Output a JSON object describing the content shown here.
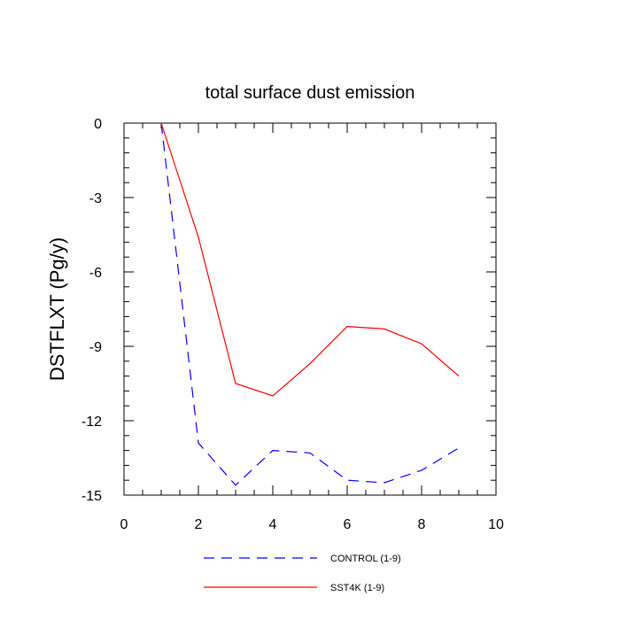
{
  "chart_data": {
    "type": "line",
    "title": "total surface dust emission",
    "xlabel": "",
    "ylabel": "DSTFLXT  (Pg/y)",
    "xlim": [
      0,
      10
    ],
    "ylim": [
      -15,
      0
    ],
    "x_ticks": [
      0,
      2,
      4,
      6,
      8,
      10
    ],
    "y_ticks": [
      0,
      -3,
      -6,
      -9,
      -12,
      -15
    ],
    "x_tick_labels": [
      "0",
      "2",
      "4",
      "6",
      "8",
      "10"
    ],
    "y_tick_labels": [
      "0",
      "-3",
      "-6",
      "-9",
      "-12",
      "-15"
    ],
    "grid": false,
    "legend_position": "bottom",
    "series": [
      {
        "name": "CONTROL (1-9)",
        "color": "#0000ff",
        "line_style": "dashed",
        "x": [
          1,
          2,
          3,
          4,
          5,
          6,
          7,
          8,
          9
        ],
        "values": [
          0,
          -12.9,
          -14.6,
          -13.2,
          -13.3,
          -14.4,
          -14.5,
          -14.0,
          -13.1
        ]
      },
      {
        "name": "SST4K (1-9)",
        "color": "#ff0000",
        "line_style": "solid",
        "x": [
          1,
          2,
          3,
          4,
          5,
          6,
          7,
          8,
          9
        ],
        "values": [
          0,
          -4.6,
          -10.5,
          -11.0,
          -9.7,
          -8.2,
          -8.3,
          -8.9,
          -10.2
        ]
      }
    ]
  }
}
